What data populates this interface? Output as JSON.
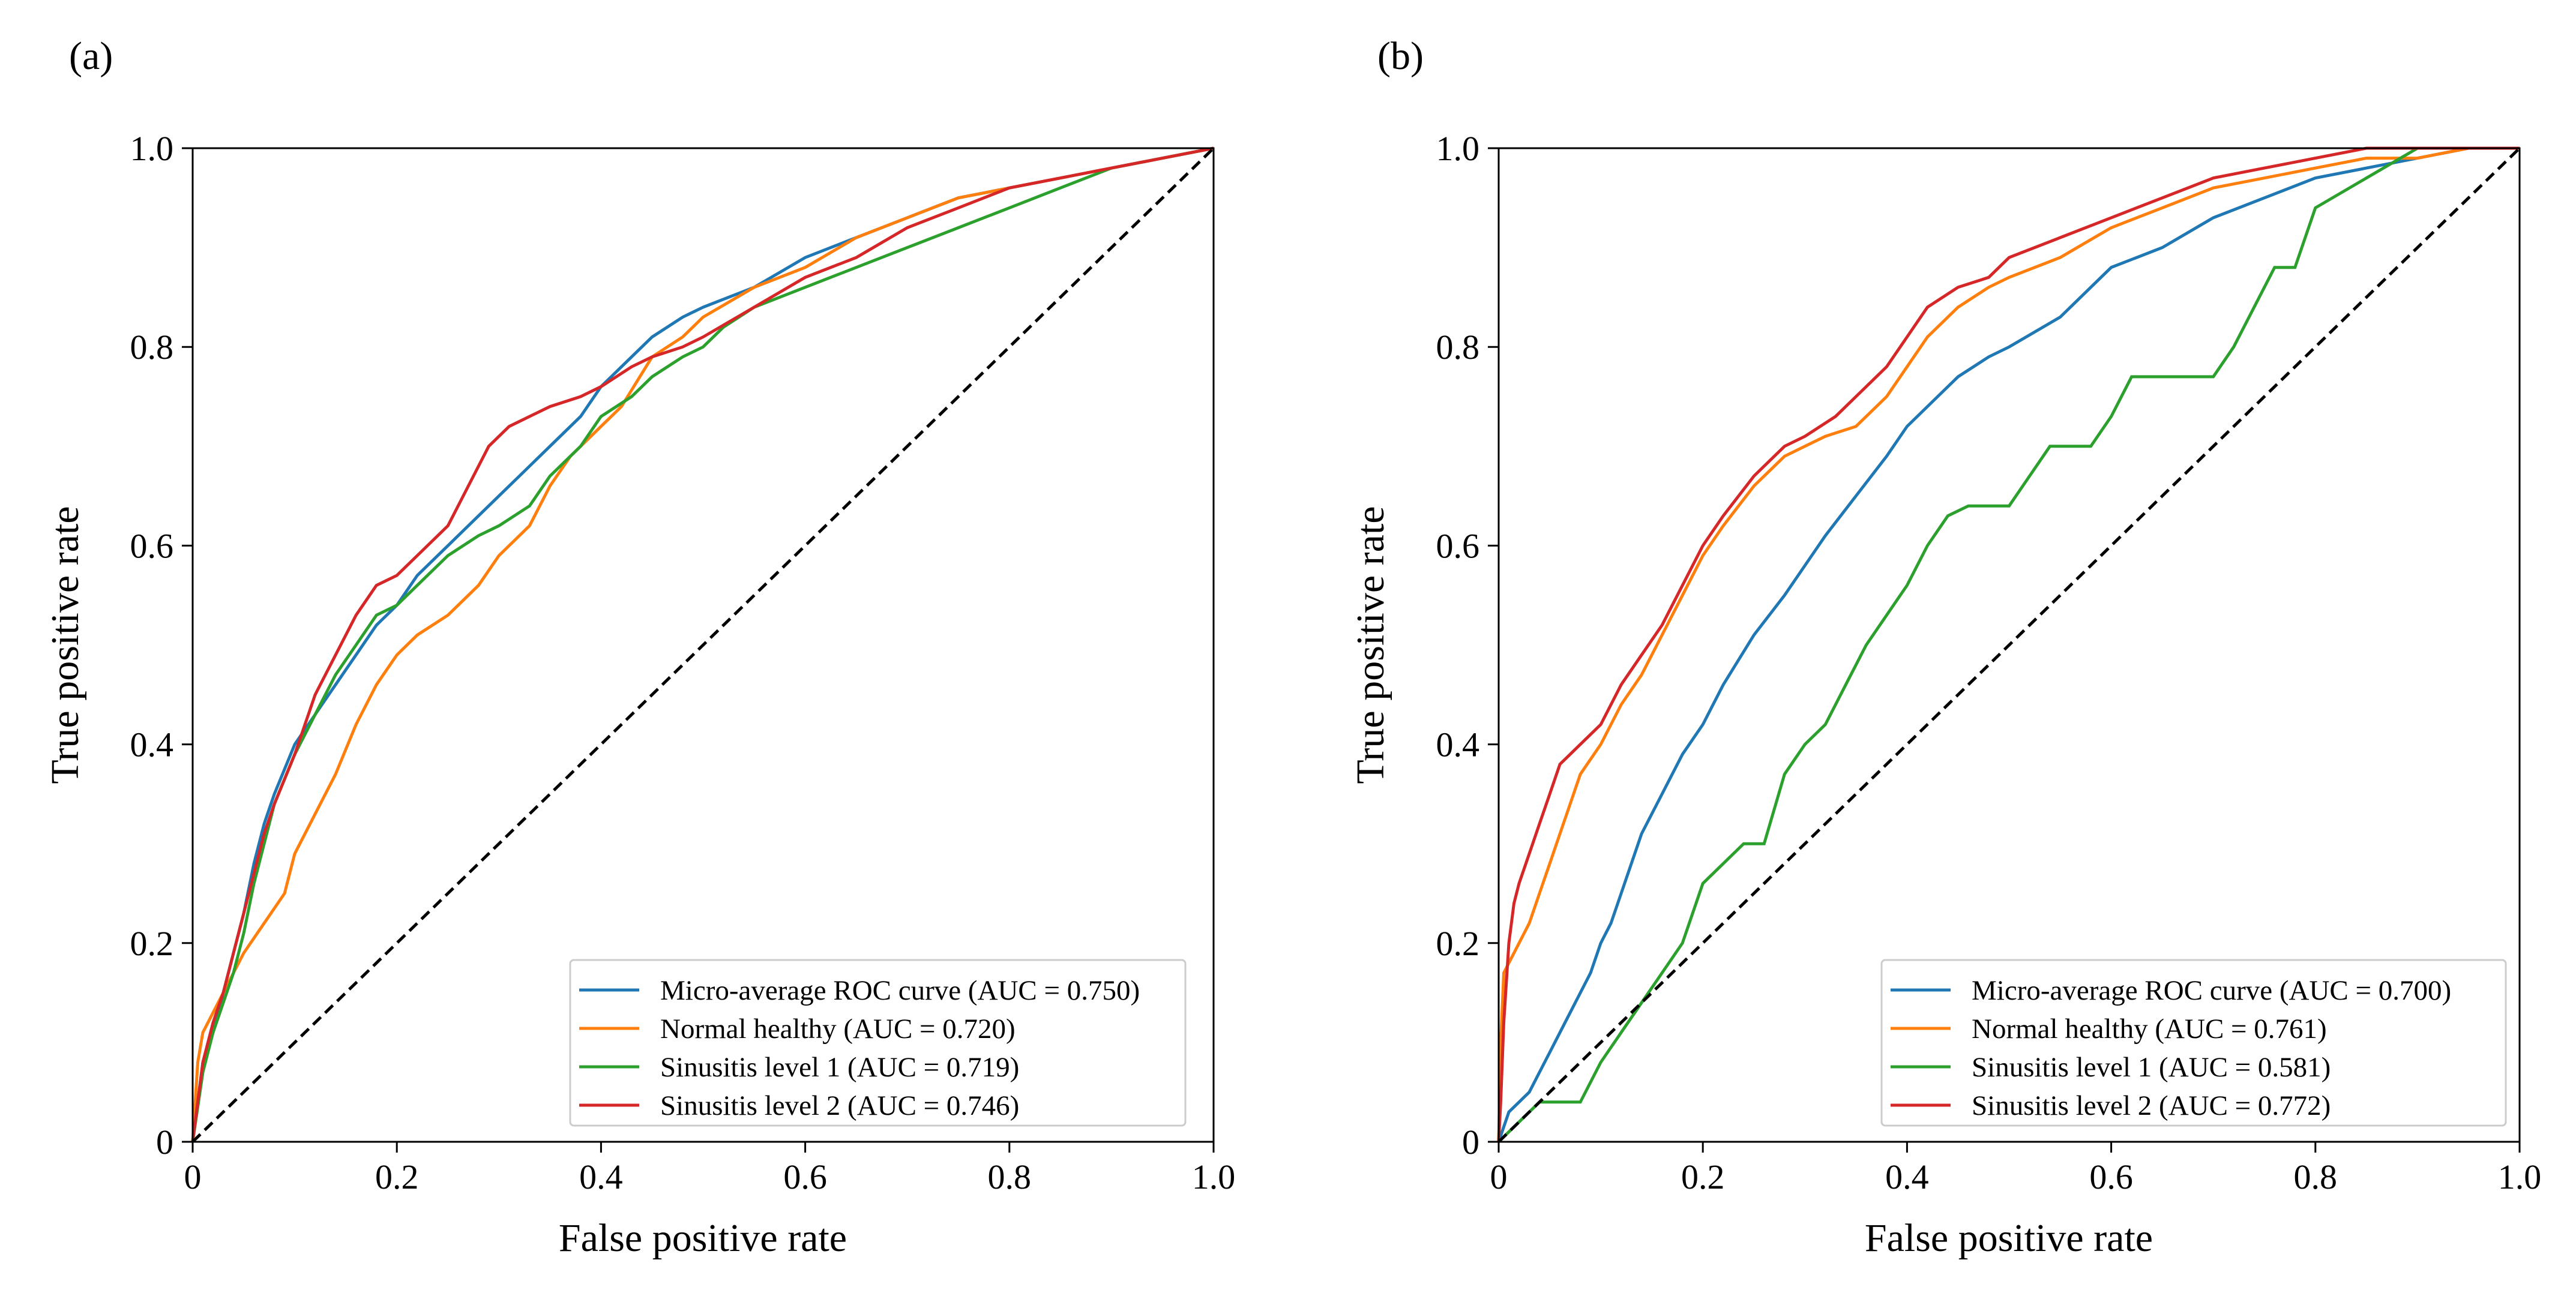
{
  "figure": {
    "panels": [
      {
        "label": "(a)"
      },
      {
        "label": "(b)"
      }
    ]
  },
  "chart_data": [
    {
      "type": "line",
      "panel": "(a)",
      "xlabel": "False positive rate",
      "ylabel": "True positive rate",
      "xlim": [
        0,
        1.0
      ],
      "ylim": [
        0,
        1.0
      ],
      "xticks": [
        "0",
        "0.2",
        "0.4",
        "0.6",
        "0.8",
        "1.0"
      ],
      "yticks": [
        "0",
        "0.2",
        "0.4",
        "0.6",
        "0.8",
        "1.0"
      ],
      "legend_position": "lower-right",
      "grid": false,
      "series": [
        {
          "name": "Micro-average ROC curve (AUC = 0.750)",
          "color": "#1f77b4",
          "x": [
            0,
            0.005,
            0.01,
            0.02,
            0.03,
            0.04,
            0.05,
            0.06,
            0.07,
            0.08,
            0.1,
            0.12,
            0.14,
            0.16,
            0.18,
            0.2,
            0.22,
            0.25,
            0.28,
            0.3,
            0.32,
            0.35,
            0.38,
            0.4,
            0.42,
            0.45,
            0.48,
            0.5,
            0.55,
            0.6,
            0.65,
            0.7,
            0.75,
            0.8,
            0.85,
            0.9,
            0.95,
            1.0
          ],
          "y": [
            0,
            0.04,
            0.08,
            0.11,
            0.15,
            0.19,
            0.23,
            0.28,
            0.32,
            0.35,
            0.4,
            0.43,
            0.46,
            0.49,
            0.52,
            0.54,
            0.57,
            0.6,
            0.63,
            0.65,
            0.67,
            0.7,
            0.73,
            0.76,
            0.78,
            0.81,
            0.83,
            0.84,
            0.86,
            0.89,
            0.91,
            0.93,
            0.95,
            0.96,
            0.97,
            0.98,
            0.99,
            1.0
          ]
        },
        {
          "name": "Normal healthy (AUC = 0.720)",
          "color": "#ff7f0e",
          "x": [
            0,
            0.005,
            0.01,
            0.03,
            0.05,
            0.07,
            0.09,
            0.1,
            0.12,
            0.14,
            0.16,
            0.18,
            0.2,
            0.22,
            0.25,
            0.28,
            0.3,
            0.33,
            0.35,
            0.37,
            0.4,
            0.42,
            0.45,
            0.48,
            0.5,
            0.55,
            0.6,
            0.65,
            0.7,
            0.75,
            0.8,
            0.85,
            0.9,
            0.95,
            1.0
          ],
          "y": [
            0,
            0.08,
            0.11,
            0.15,
            0.19,
            0.22,
            0.25,
            0.29,
            0.33,
            0.37,
            0.42,
            0.46,
            0.49,
            0.51,
            0.53,
            0.56,
            0.59,
            0.62,
            0.66,
            0.69,
            0.72,
            0.74,
            0.79,
            0.81,
            0.83,
            0.86,
            0.88,
            0.91,
            0.93,
            0.95,
            0.96,
            0.97,
            0.98,
            0.99,
            1.0
          ]
        },
        {
          "name": "Sinusitis level 1 (AUC = 0.719)",
          "color": "#2ca02c",
          "x": [
            0,
            0.01,
            0.02,
            0.03,
            0.04,
            0.05,
            0.06,
            0.07,
            0.08,
            0.1,
            0.12,
            0.14,
            0.16,
            0.18,
            0.2,
            0.22,
            0.25,
            0.28,
            0.3,
            0.33,
            0.35,
            0.38,
            0.4,
            0.43,
            0.45,
            0.48,
            0.5,
            0.52,
            0.55,
            0.6,
            0.65,
            0.7,
            0.75,
            0.8,
            0.85,
            0.9,
            0.95,
            1.0
          ],
          "y": [
            0,
            0.07,
            0.11,
            0.14,
            0.17,
            0.21,
            0.26,
            0.3,
            0.34,
            0.39,
            0.43,
            0.47,
            0.5,
            0.53,
            0.54,
            0.56,
            0.59,
            0.61,
            0.62,
            0.64,
            0.67,
            0.7,
            0.73,
            0.75,
            0.77,
            0.79,
            0.8,
            0.82,
            0.84,
            0.86,
            0.88,
            0.9,
            0.92,
            0.94,
            0.96,
            0.98,
            0.99,
            1.0
          ]
        },
        {
          "name": "Sinusitis level 2 (AUC = 0.746)",
          "color": "#d62728",
          "x": [
            0,
            0.01,
            0.02,
            0.03,
            0.04,
            0.05,
            0.06,
            0.07,
            0.08,
            0.1,
            0.12,
            0.14,
            0.16,
            0.18,
            0.2,
            0.22,
            0.25,
            0.27,
            0.29,
            0.31,
            0.33,
            0.35,
            0.38,
            0.4,
            0.43,
            0.45,
            0.48,
            0.5,
            0.55,
            0.6,
            0.65,
            0.7,
            0.75,
            0.8,
            0.85,
            0.9,
            0.95,
            1.0
          ],
          "y": [
            0,
            0.08,
            0.12,
            0.15,
            0.19,
            0.23,
            0.27,
            0.31,
            0.34,
            0.39,
            0.45,
            0.49,
            0.53,
            0.56,
            0.57,
            0.59,
            0.62,
            0.66,
            0.7,
            0.72,
            0.73,
            0.74,
            0.75,
            0.76,
            0.78,
            0.79,
            0.8,
            0.81,
            0.84,
            0.87,
            0.89,
            0.92,
            0.94,
            0.96,
            0.97,
            0.98,
            0.99,
            1.0
          ]
        },
        {
          "name": "",
          "color": "#000000",
          "dashed": true,
          "x": [
            0,
            1.0
          ],
          "y": [
            0,
            1.0
          ]
        }
      ]
    },
    {
      "type": "line",
      "panel": "(b)",
      "xlabel": "False positive rate",
      "ylabel": "True positive rate",
      "xlim": [
        0,
        1.0
      ],
      "ylim": [
        0,
        1.0
      ],
      "xticks": [
        "0",
        "0.2",
        "0.4",
        "0.6",
        "0.8",
        "1.0"
      ],
      "yticks": [
        "0",
        "0.2",
        "0.4",
        "0.6",
        "0.8",
        "1.0"
      ],
      "legend_position": "lower-right",
      "grid": false,
      "series": [
        {
          "name": "Micro-average ROC curve (AUC = 0.700)",
          "color": "#1f77b4",
          "x": [
            0,
            0.01,
            0.02,
            0.03,
            0.04,
            0.05,
            0.06,
            0.07,
            0.08,
            0.09,
            0.1,
            0.11,
            0.12,
            0.13,
            0.14,
            0.16,
            0.18,
            0.2,
            0.22,
            0.25,
            0.28,
            0.3,
            0.32,
            0.35,
            0.38,
            0.4,
            0.43,
            0.45,
            0.48,
            0.5,
            0.55,
            0.6,
            0.65,
            0.7,
            0.75,
            0.8,
            0.85,
            0.9,
            0.95,
            1.0
          ],
          "y": [
            0,
            0.03,
            0.04,
            0.05,
            0.07,
            0.09,
            0.11,
            0.13,
            0.15,
            0.17,
            0.2,
            0.22,
            0.25,
            0.28,
            0.31,
            0.35,
            0.39,
            0.42,
            0.46,
            0.51,
            0.55,
            0.58,
            0.61,
            0.65,
            0.69,
            0.72,
            0.75,
            0.77,
            0.79,
            0.8,
            0.83,
            0.88,
            0.9,
            0.93,
            0.95,
            0.97,
            0.98,
            0.99,
            1.0,
            1.0
          ]
        },
        {
          "name": "Normal healthy (AUC = 0.761)",
          "color": "#ff7f0e",
          "x": [
            0,
            0.002,
            0.005,
            0.01,
            0.02,
            0.03,
            0.04,
            0.05,
            0.06,
            0.07,
            0.08,
            0.1,
            0.12,
            0.14,
            0.16,
            0.18,
            0.2,
            0.22,
            0.25,
            0.28,
            0.3,
            0.32,
            0.35,
            0.38,
            0.4,
            0.42,
            0.45,
            0.48,
            0.5,
            0.55,
            0.6,
            0.65,
            0.7,
            0.75,
            0.8,
            0.85,
            0.9,
            0.95,
            1.0
          ],
          "y": [
            0,
            0.1,
            0.17,
            0.18,
            0.2,
            0.22,
            0.25,
            0.28,
            0.31,
            0.34,
            0.37,
            0.4,
            0.44,
            0.47,
            0.51,
            0.55,
            0.59,
            0.62,
            0.66,
            0.69,
            0.7,
            0.71,
            0.72,
            0.75,
            0.78,
            0.81,
            0.84,
            0.86,
            0.87,
            0.89,
            0.92,
            0.94,
            0.96,
            0.97,
            0.98,
            0.99,
            0.99,
            1.0,
            1.0
          ]
        },
        {
          "name": "Sinusitis level 1 (AUC = 0.581)",
          "color": "#2ca02c",
          "x": [
            0,
            0.01,
            0.02,
            0.04,
            0.06,
            0.08,
            0.09,
            0.1,
            0.12,
            0.14,
            0.16,
            0.18,
            0.19,
            0.2,
            0.22,
            0.24,
            0.26,
            0.28,
            0.3,
            0.32,
            0.34,
            0.36,
            0.38,
            0.4,
            0.42,
            0.44,
            0.46,
            0.48,
            0.5,
            0.52,
            0.54,
            0.56,
            0.58,
            0.6,
            0.62,
            0.65,
            0.68,
            0.7,
            0.72,
            0.74,
            0.76,
            0.78,
            0.8,
            0.85,
            0.9,
            0.95,
            1.0
          ],
          "y": [
            0,
            0.01,
            0.02,
            0.04,
            0.04,
            0.04,
            0.06,
            0.08,
            0.11,
            0.14,
            0.17,
            0.2,
            0.23,
            0.26,
            0.28,
            0.3,
            0.3,
            0.37,
            0.4,
            0.42,
            0.46,
            0.5,
            0.53,
            0.56,
            0.6,
            0.63,
            0.64,
            0.64,
            0.64,
            0.67,
            0.7,
            0.7,
            0.7,
            0.73,
            0.77,
            0.77,
            0.77,
            0.77,
            0.8,
            0.84,
            0.88,
            0.88,
            0.94,
            0.97,
            1.0,
            1.0,
            1.0
          ]
        },
        {
          "name": "Sinusitis level 2 (AUC = 0.772)",
          "color": "#d62728",
          "x": [
            0,
            0.002,
            0.005,
            0.01,
            0.015,
            0.02,
            0.03,
            0.04,
            0.05,
            0.06,
            0.07,
            0.08,
            0.1,
            0.12,
            0.14,
            0.16,
            0.18,
            0.2,
            0.22,
            0.25,
            0.28,
            0.3,
            0.33,
            0.35,
            0.38,
            0.4,
            0.42,
            0.45,
            0.48,
            0.5,
            0.55,
            0.6,
            0.65,
            0.7,
            0.75,
            0.8,
            0.85,
            0.9,
            0.95,
            1.0
          ],
          "y": [
            0,
            0.04,
            0.12,
            0.2,
            0.24,
            0.26,
            0.29,
            0.32,
            0.35,
            0.38,
            0.39,
            0.4,
            0.42,
            0.46,
            0.49,
            0.52,
            0.56,
            0.6,
            0.63,
            0.67,
            0.7,
            0.71,
            0.73,
            0.75,
            0.78,
            0.81,
            0.84,
            0.86,
            0.87,
            0.89,
            0.91,
            0.93,
            0.95,
            0.97,
            0.98,
            0.99,
            1.0,
            1.0,
            1.0,
            1.0
          ]
        },
        {
          "name": "",
          "color": "#000000",
          "dashed": true,
          "x": [
            0,
            1.0
          ],
          "y": [
            0,
            1.0
          ]
        }
      ]
    }
  ]
}
